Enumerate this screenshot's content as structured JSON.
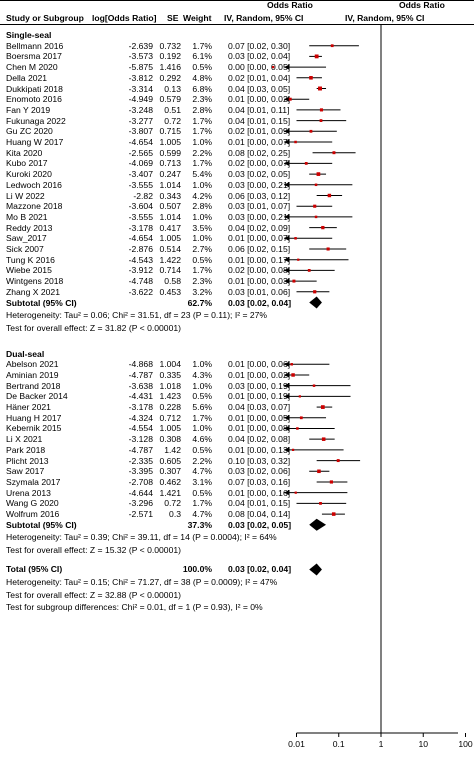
{
  "header": {
    "col_study": "Study or Subgroup",
    "col_log": "log[Odds Ratio]",
    "col_se": "SE",
    "col_weight": "Weight",
    "or_title": "Odds Ratio",
    "or_method": "IV, Random, 95% CI",
    "plot_title": "Odds Ratio",
    "plot_method": "IV, Random, 95% CI"
  },
  "chart_data": {
    "type": "forest",
    "x_scale": "log",
    "xlim": [
      0.004,
      200
    ],
    "x_ticks": [
      0.01,
      0.1,
      1,
      10,
      100
    ],
    "x_tick_labels": [
      "0.01",
      "0.1",
      "1",
      "10",
      "100"
    ],
    "reference_line": 1,
    "subgroups": [
      {
        "name": "Single-seal",
        "studies": [
          {
            "study": "Bellmann 2016",
            "log_or": "-2.639",
            "se": "0.732",
            "weight": "1.7%",
            "ci_text": "0.07 [0.02, 0.30]",
            "or": 0.07,
            "lo": 0.02,
            "hi": 0.3
          },
          {
            "study": "Boersma 2017",
            "log_or": "-3.573",
            "se": "0.192",
            "weight": "6.1%",
            "ci_text": "0.03 [0.02, 0.04]",
            "or": 0.03,
            "lo": 0.02,
            "hi": 0.04
          },
          {
            "study": "Chen M 2020",
            "log_or": "-5.875",
            "se": "1.416",
            "weight": "0.5%",
            "ci_text": "0.00 [0.00, 0.05]",
            "or": 0.0028,
            "lo": 0.0002,
            "hi": 0.05
          },
          {
            "study": "Della 2021",
            "log_or": "-3.812",
            "se": "0.292",
            "weight": "4.8%",
            "ci_text": "0.02 [0.01, 0.04]",
            "or": 0.022,
            "lo": 0.01,
            "hi": 0.04
          },
          {
            "study": "Dukkipati 2018",
            "log_or": "-3.314",
            "se": "0.13",
            "weight": "6.8%",
            "ci_text": "0.04 [0.03, 0.05]",
            "or": 0.036,
            "lo": 0.03,
            "hi": 0.05
          },
          {
            "study": "Enomoto 2016",
            "log_or": "-4.949",
            "se": "0.579",
            "weight": "2.3%",
            "ci_text": "0.01 [0.00, 0.02]",
            "or": 0.0071,
            "lo": 0.002,
            "hi": 0.02
          },
          {
            "study": "Fan Y 2019",
            "log_or": "-3.248",
            "se": "0.51",
            "weight": "2.8%",
            "ci_text": "0.04 [0.01, 0.11]",
            "or": 0.039,
            "lo": 0.01,
            "hi": 0.11
          },
          {
            "study": "Fukunaga 2022",
            "log_or": "-3.277",
            "se": "0.72",
            "weight": "1.7%",
            "ci_text": "0.04 [0.01, 0.15]",
            "or": 0.038,
            "lo": 0.01,
            "hi": 0.15
          },
          {
            "study": "Gu ZC 2020",
            "log_or": "-3.807",
            "se": "0.715",
            "weight": "1.7%",
            "ci_text": "0.02 [0.01, 0.09]",
            "or": 0.022,
            "lo": 0.005,
            "hi": 0.09
          },
          {
            "study": "Huang W 2017",
            "log_or": "-4.654",
            "se": "1.005",
            "weight": "1.0%",
            "ci_text": "0.01 [0.00, 0.07]",
            "or": 0.0095,
            "lo": 0.0013,
            "hi": 0.07
          },
          {
            "study": "Kita 2020",
            "log_or": "-2.565",
            "se": "0.599",
            "weight": "2.2%",
            "ci_text": "0.08 [0.02, 0.25]",
            "or": 0.077,
            "lo": 0.024,
            "hi": 0.25
          },
          {
            "study": "Kubo 2017",
            "log_or": "-4.069",
            "se": "0.713",
            "weight": "1.7%",
            "ci_text": "0.02 [0.00, 0.07]",
            "or": 0.017,
            "lo": 0.004,
            "hi": 0.07
          },
          {
            "study": "Kuroki 2020",
            "log_or": "-3.407",
            "se": "0.247",
            "weight": "5.4%",
            "ci_text": "0.03 [0.02, 0.05]",
            "or": 0.033,
            "lo": 0.02,
            "hi": 0.05
          },
          {
            "study": "Ledwoch 2016",
            "log_or": "-3.555",
            "se": "1.014",
            "weight": "1.0%",
            "ci_text": "0.03 [0.00, 0.21]",
            "or": 0.029,
            "lo": 0.004,
            "hi": 0.21
          },
          {
            "study": "Li W 2022",
            "log_or": "-2.82",
            "se": "0.343",
            "weight": "4.2%",
            "ci_text": "0.06 [0.03, 0.12]",
            "or": 0.06,
            "lo": 0.03,
            "hi": 0.12
          },
          {
            "study": "Mazzone 2018",
            "log_or": "-3.604",
            "se": "0.507",
            "weight": "2.8%",
            "ci_text": "0.03 [0.01, 0.07]",
            "or": 0.027,
            "lo": 0.01,
            "hi": 0.07
          },
          {
            "study": "Mo B 2021",
            "log_or": "-3.555",
            "se": "1.014",
            "weight": "1.0%",
            "ci_text": "0.03 [0.00, 0.21]",
            "or": 0.029,
            "lo": 0.004,
            "hi": 0.21
          },
          {
            "study": "Reddy 2013",
            "log_or": "-3.178",
            "se": "0.417",
            "weight": "3.5%",
            "ci_text": "0.04 [0.02, 0.09]",
            "or": 0.042,
            "lo": 0.02,
            "hi": 0.09
          },
          {
            "study": "Saw_2017",
            "log_or": "-4.654",
            "se": "1.005",
            "weight": "1.0%",
            "ci_text": "0.01 [0.00, 0.07]",
            "or": 0.0095,
            "lo": 0.0013,
            "hi": 0.07
          },
          {
            "study": "Sick 2007",
            "log_or": "-2.876",
            "se": "0.514",
            "weight": "2.7%",
            "ci_text": "0.06 [0.02, 0.15]",
            "or": 0.056,
            "lo": 0.02,
            "hi": 0.15
          },
          {
            "study": "Tung K 2016",
            "log_or": "-4.543",
            "se": "1.422",
            "weight": "0.5%",
            "ci_text": "0.01 [0.00, 0.17]",
            "or": 0.011,
            "lo": 0.0007,
            "hi": 0.17
          },
          {
            "study": "Wiebe 2015",
            "log_or": "-3.912",
            "se": "0.714",
            "weight": "1.7%",
            "ci_text": "0.02 [0.00, 0.08]",
            "or": 0.02,
            "lo": 0.005,
            "hi": 0.08
          },
          {
            "study": "Wintgens 2018",
            "log_or": "-4.748",
            "se": "0.58",
            "weight": "2.3%",
            "ci_text": "0.01 [0.00, 0.03]",
            "or": 0.0087,
            "lo": 0.003,
            "hi": 0.03
          },
          {
            "study": "Zhang X 2021",
            "log_or": "-3.622",
            "se": "0.453",
            "weight": "3.2%",
            "ci_text": "0.03 [0.01, 0.06]",
            "or": 0.027,
            "lo": 0.01,
            "hi": 0.06
          }
        ],
        "subtotal": {
          "label": "Subtotal (95% CI)",
          "weight": "62.7%",
          "ci_text": "0.03 [0.02, 0.04]",
          "or": 0.03,
          "lo": 0.02,
          "hi": 0.04
        },
        "heterogeneity": "Heterogeneity: Tau² = 0.06; Chi² = 31.51, df = 23 (P = 0.11); I² = 27%",
        "overall_effect": "Test for overall effect: Z = 31.82 (P < 0.00001)"
      },
      {
        "name": "Dual-seal",
        "studies": [
          {
            "study": "Abelson 2021",
            "log_or": "-4.868",
            "se": "1.004",
            "weight": "1.0%",
            "ci_text": "0.01 [0.00, 0.06]",
            "or": 0.0077,
            "lo": 0.0011,
            "hi": 0.06
          },
          {
            "study": "Aminian 2019",
            "log_or": "-4.787",
            "se": "0.335",
            "weight": "4.3%",
            "ci_text": "0.01 [0.00, 0.02]",
            "or": 0.0083,
            "lo": 0.004,
            "hi": 0.02
          },
          {
            "study": "Bertrand 2018",
            "log_or": "-3.638",
            "se": "1.018",
            "weight": "1.0%",
            "ci_text": "0.03 [0.00, 0.19]",
            "or": 0.026,
            "lo": 0.0036,
            "hi": 0.19
          },
          {
            "study": "De Backer 2014",
            "log_or": "-4.431",
            "se": "1.423",
            "weight": "0.5%",
            "ci_text": "0.01 [0.00, 0.19]",
            "or": 0.012,
            "lo": 0.0007,
            "hi": 0.19
          },
          {
            "study": "Häner 2021",
            "log_or": "-3.178",
            "se": "0.228",
            "weight": "5.6%",
            "ci_text": "0.04 [0.03, 0.07]",
            "or": 0.042,
            "lo": 0.03,
            "hi": 0.07
          },
          {
            "study": "Huang H 2017",
            "log_or": "-4.324",
            "se": "0.712",
            "weight": "1.7%",
            "ci_text": "0.01 [0.00, 0.05]",
            "or": 0.013,
            "lo": 0.0033,
            "hi": 0.05
          },
          {
            "study": "Kebernik 2015",
            "log_or": "-4.554",
            "se": "1.005",
            "weight": "1.0%",
            "ci_text": "0.01 [0.00, 0.08]",
            "or": 0.0105,
            "lo": 0.0015,
            "hi": 0.08
          },
          {
            "study": "Li X 2021",
            "log_or": "-3.128",
            "se": "0.308",
            "weight": "4.6%",
            "ci_text": "0.04 [0.02, 0.08]",
            "or": 0.044,
            "lo": 0.02,
            "hi": 0.08
          },
          {
            "study": "Park 2018",
            "log_or": "-4.787",
            "se": "1.42",
            "weight": "0.5%",
            "ci_text": "0.01 [0.00, 0.13]",
            "or": 0.0083,
            "lo": 0.0005,
            "hi": 0.13
          },
          {
            "study": "Plicht 2013",
            "log_or": "-2.335",
            "se": "0.605",
            "weight": "2.2%",
            "ci_text": "0.10 [0.03, 0.32]",
            "or": 0.097,
            "lo": 0.03,
            "hi": 0.32
          },
          {
            "study": "Saw 2017",
            "log_or": "-3.395",
            "se": "0.307",
            "weight": "4.7%",
            "ci_text": "0.03 [0.02, 0.06]",
            "or": 0.034,
            "lo": 0.02,
            "hi": 0.06
          },
          {
            "study": "Szymala 2017",
            "log_or": "-2.708",
            "se": "0.462",
            "weight": "3.1%",
            "ci_text": "0.07 [0.03, 0.16]",
            "or": 0.067,
            "lo": 0.03,
            "hi": 0.16
          },
          {
            "study": "Urena 2013",
            "log_or": "-4.644",
            "se": "1.421",
            "weight": "0.5%",
            "ci_text": "0.01 [0.00, 0.16]",
            "or": 0.0096,
            "lo": 0.0006,
            "hi": 0.16
          },
          {
            "study": "Wang G 2020",
            "log_or": "-3.296",
            "se": "0.72",
            "weight": "1.7%",
            "ci_text": "0.04 [0.01, 0.15]",
            "or": 0.037,
            "lo": 0.01,
            "hi": 0.15
          },
          {
            "study": "Wolfrum 2016",
            "log_or": "-2.571",
            "se": "0.3",
            "weight": "4.7%",
            "ci_text": "0.08 [0.04, 0.14]",
            "or": 0.076,
            "lo": 0.04,
            "hi": 0.14
          }
        ],
        "subtotal": {
          "label": "Subtotal (95% CI)",
          "weight": "37.3%",
          "ci_text": "0.03 [0.02, 0.05]",
          "or": 0.03,
          "lo": 0.02,
          "hi": 0.05
        },
        "heterogeneity": "Heterogeneity: Tau² = 0.39; Chi² = 39.11, df = 14 (P = 0.0004); I² = 64%",
        "overall_effect": "Test for overall effect: Z = 15.32 (P < 0.00001)"
      }
    ],
    "total": {
      "label": "Total (95% CI)",
      "weight": "100.0%",
      "ci_text": "0.03 [0.02, 0.04]",
      "or": 0.03,
      "lo": 0.02,
      "hi": 0.04,
      "heterogeneity": "Heterogeneity: Tau² = 0.15; Chi² = 71.27, df = 38 (P = 0.0009); I² = 47%",
      "overall_effect": "Test for overall effect: Z = 32.88 (P < 0.00001)",
      "subgroup_differences": "Test for subgroup differences: Chi² = 0.01, df = 1 (P = 0.93), I² = 0%"
    },
    "colors": {
      "point": "#cc0000",
      "line": "#000000"
    }
  }
}
